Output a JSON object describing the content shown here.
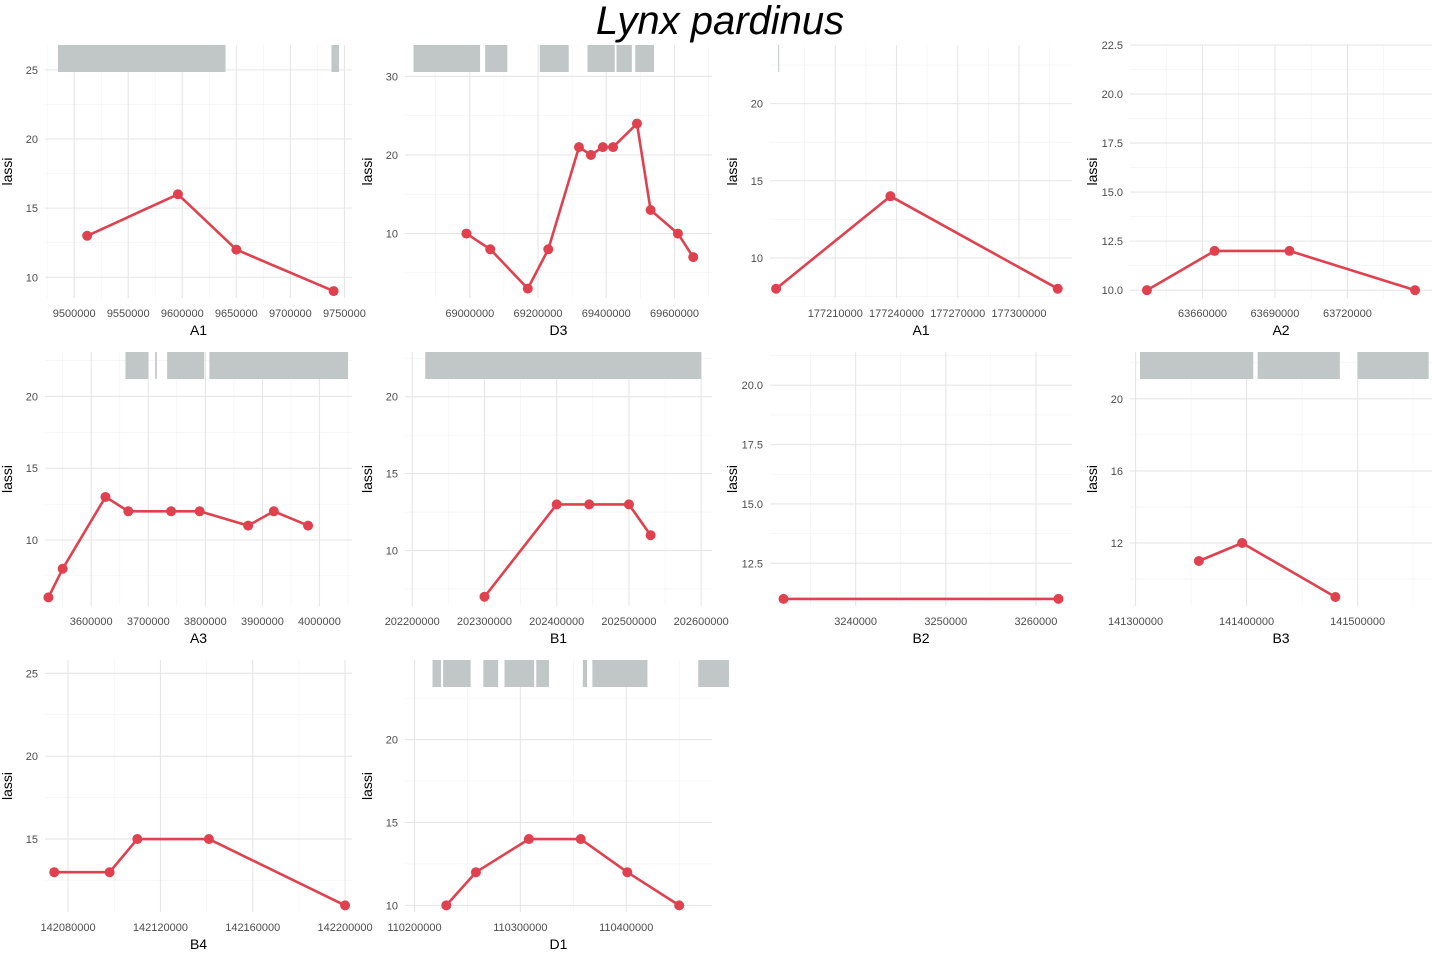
{
  "title": "Lynx pardinus",
  "colors": {
    "line": "#e0414f",
    "bar": "#c1c7c7",
    "grid_major": "#e6e6e6",
    "grid_minor": "#f2f2f2"
  },
  "chart_data": [
    {
      "type": "line",
      "xlabel": "A1",
      "ylabel": "lassi",
      "x": [
        9512000,
        9596000,
        9650000,
        9740000
      ],
      "y": [
        13,
        16,
        12,
        9
      ],
      "xlim": [
        9473000,
        9757000
      ],
      "ylim": [
        8.5,
        26.8
      ],
      "xticks": [
        9500000,
        9550000,
        9600000,
        9650000,
        9700000,
        9750000
      ],
      "xtick_labels": [
        "9500000",
        "9550000",
        "9600000",
        "9650000",
        "9700000",
        "9750000"
      ],
      "yticks": [
        10,
        15,
        20,
        25
      ],
      "ytick_labels": [
        "10",
        "15",
        "20",
        "25"
      ],
      "bars": [
        [
          9485000,
          9640000
        ],
        [
          9738000,
          9745000
        ]
      ]
    },
    {
      "type": "line",
      "xlabel": "D3",
      "ylabel": "lassi",
      "x": [
        68990000,
        69060000,
        69170000,
        69230000,
        69320000,
        69355000,
        69390000,
        69420000,
        69490000,
        69530000,
        69610000,
        69655000
      ],
      "y": [
        10,
        8,
        3,
        8,
        21,
        20,
        21,
        21,
        24,
        13,
        10,
        7
      ],
      "xlim": [
        68810000,
        69710000
      ],
      "ylim": [
        1.8,
        34.0
      ],
      "xticks": [
        69000000,
        69200000,
        69400000,
        69600000
      ],
      "xtick_labels": [
        "69000000",
        "69200000",
        "69400000",
        "69600000"
      ],
      "yticks": [
        10,
        20,
        30
      ],
      "ytick_labels": [
        "10",
        "20",
        "30"
      ],
      "bars": [
        [
          68835000,
          69030000
        ],
        [
          69045000,
          69110000
        ],
        [
          69205000,
          69290000
        ],
        [
          69345000,
          69425000
        ],
        [
          69430000,
          69475000
        ],
        [
          69485000,
          69540000
        ]
      ]
    },
    {
      "type": "line",
      "xlabel": "A1",
      "ylabel": "lassi",
      "x": [
        177181000,
        177237000,
        177319000
      ],
      "y": [
        8,
        14,
        8
      ],
      "xlim": [
        177178000,
        177326000
      ],
      "ylim": [
        7.4,
        23.8
      ],
      "xticks": [
        177210000,
        177240000,
        177270000,
        177300000
      ],
      "xtick_labels": [
        "177210000",
        "177240000",
        "177270000",
        "177300000"
      ],
      "yticks": [
        10,
        15,
        20
      ],
      "ytick_labels": [
        "10",
        "15",
        "20"
      ],
      "bars": [
        [
          177182000,
          177182400
        ]
      ]
    },
    {
      "type": "line",
      "xlabel": "A2",
      "ylabel": "lassi",
      "x": [
        63637000,
        63665000,
        63696000,
        63748000
      ],
      "y": [
        10,
        12,
        12,
        10
      ],
      "xlim": [
        63630000,
        63755000
      ],
      "ylim": [
        9.6,
        22.5
      ],
      "xticks": [
        63660000,
        63690000,
        63720000
      ],
      "xtick_labels": [
        "63660000",
        "63690000",
        "63720000"
      ],
      "yticks": [
        10.0,
        12.5,
        15.0,
        17.5,
        20.0,
        22.5
      ],
      "ytick_labels": [
        "10.0",
        "12.5",
        "15.0",
        "17.5",
        "20.0",
        "22.5"
      ],
      "bars": []
    },
    {
      "type": "line",
      "xlabel": "A3",
      "ylabel": "lassi",
      "x": [
        3525000,
        3550000,
        3625000,
        3665000,
        3740000,
        3790000,
        3875000,
        3920000,
        3980000
      ],
      "y": [
        6,
        8,
        13,
        12,
        12,
        12,
        11,
        12,
        11
      ],
      "xlim": [
        3519000,
        4057000
      ],
      "ylim": [
        5.4,
        23.1
      ],
      "xticks": [
        3600000,
        3700000,
        3800000,
        3900000,
        4000000
      ],
      "xtick_labels": [
        "3600000",
        "3700000",
        "3800000",
        "3900000",
        "4000000"
      ],
      "yticks": [
        10,
        15,
        20
      ],
      "ytick_labels": [
        "10",
        "15",
        "20"
      ],
      "bars": [
        [
          3660000,
          3700000
        ],
        [
          3712000,
          3715000
        ],
        [
          3733000,
          3798000
        ],
        [
          3807000,
          4050000
        ]
      ]
    },
    {
      "type": "line",
      "xlabel": "B1",
      "ylabel": "lassi",
      "x": [
        202300000,
        202400000,
        202445000,
        202500000,
        202530000
      ],
      "y": [
        7,
        13,
        13,
        13,
        11
      ],
      "xlim": [
        202190000,
        202615000
      ],
      "ylim": [
        6.4,
        22.9
      ],
      "xticks": [
        202200000,
        202300000,
        202400000,
        202500000,
        202600000
      ],
      "xtick_labels": [
        "202200000",
        "202300000",
        "202400000",
        "202500000",
        "202600000"
      ],
      "yticks": [
        10,
        15,
        20
      ],
      "ytick_labels": [
        "10",
        "15",
        "20"
      ],
      "bars": [
        [
          202218000,
          202600000
        ]
      ]
    },
    {
      "type": "line",
      "xlabel": "B2",
      "ylabel": "lassi",
      "x": [
        3232000,
        3262500
      ],
      "y": [
        11,
        11
      ],
      "xlim": [
        3230500,
        3264000
      ],
      "ylim": [
        10.7,
        21.4
      ],
      "xticks": [
        3240000,
        3250000,
        3260000
      ],
      "xtick_labels": [
        "3240000",
        "3250000",
        "3260000"
      ],
      "yticks": [
        12.5,
        15.0,
        17.5,
        20.0
      ],
      "ytick_labels": [
        "12.5",
        "15.0",
        "17.5",
        "20.0"
      ],
      "bars": []
    },
    {
      "type": "line",
      "xlabel": "B3",
      "ylabel": "lassi",
      "x": [
        141357000,
        141396000,
        141480000
      ],
      "y": [
        11,
        12,
        9
      ],
      "xlim": [
        141295000,
        141567000
      ],
      "ylim": [
        8.5,
        22.6
      ],
      "xticks": [
        141300000,
        141400000,
        141500000
      ],
      "xtick_labels": [
        "141300000",
        "141400000",
        "141500000"
      ],
      "yticks": [
        12,
        16,
        20
      ],
      "ytick_labels": [
        "12",
        "16",
        "20"
      ],
      "bars": [
        [
          141304000,
          141406000
        ],
        [
          141410000,
          141484000
        ],
        [
          141500000,
          141564000
        ]
      ]
    },
    {
      "type": "line",
      "xlabel": "B4",
      "ylabel": "lassi",
      "x": [
        142074000,
        142098000,
        142110000,
        142141000,
        142200000
      ],
      "y": [
        13,
        13,
        15,
        15,
        11
      ],
      "xlim": [
        142070000,
        142203000
      ],
      "ylim": [
        10.6,
        25.8
      ],
      "xticks": [
        142080000,
        142120000,
        142160000,
        142200000
      ],
      "xtick_labels": [
        "142080000",
        "142120000",
        "142160000",
        "142200000"
      ],
      "yticks": [
        15,
        20,
        25
      ],
      "ytick_labels": [
        "15",
        "20",
        "25"
      ],
      "bars": []
    },
    {
      "type": "line",
      "xlabel": "D1",
      "ylabel": "lassi",
      "x": [
        110230000,
        110258000,
        110308000,
        110357000,
        110401000,
        110450000
      ],
      "y": [
        10,
        12,
        14,
        14,
        12,
        10
      ],
      "xlim": [
        110191000,
        110481000
      ],
      "ylim": [
        9.6,
        24.8
      ],
      "xticks": [
        110200000,
        110300000,
        110400000
      ],
      "xtick_labels": [
        "110200000",
        "110300000",
        "110400000"
      ],
      "yticks": [
        10,
        15,
        20
      ],
      "ytick_labels": [
        "10",
        "15",
        "20"
      ],
      "bars": [
        [
          110217000,
          110225000
        ],
        [
          110227000,
          110253000
        ],
        [
          110265000,
          110279000
        ],
        [
          110285000,
          110313000
        ],
        [
          110315000,
          110327000
        ],
        [
          110359000,
          110363000
        ],
        [
          110368000,
          110420000
        ],
        [
          110468000,
          110497000
        ]
      ]
    }
  ]
}
